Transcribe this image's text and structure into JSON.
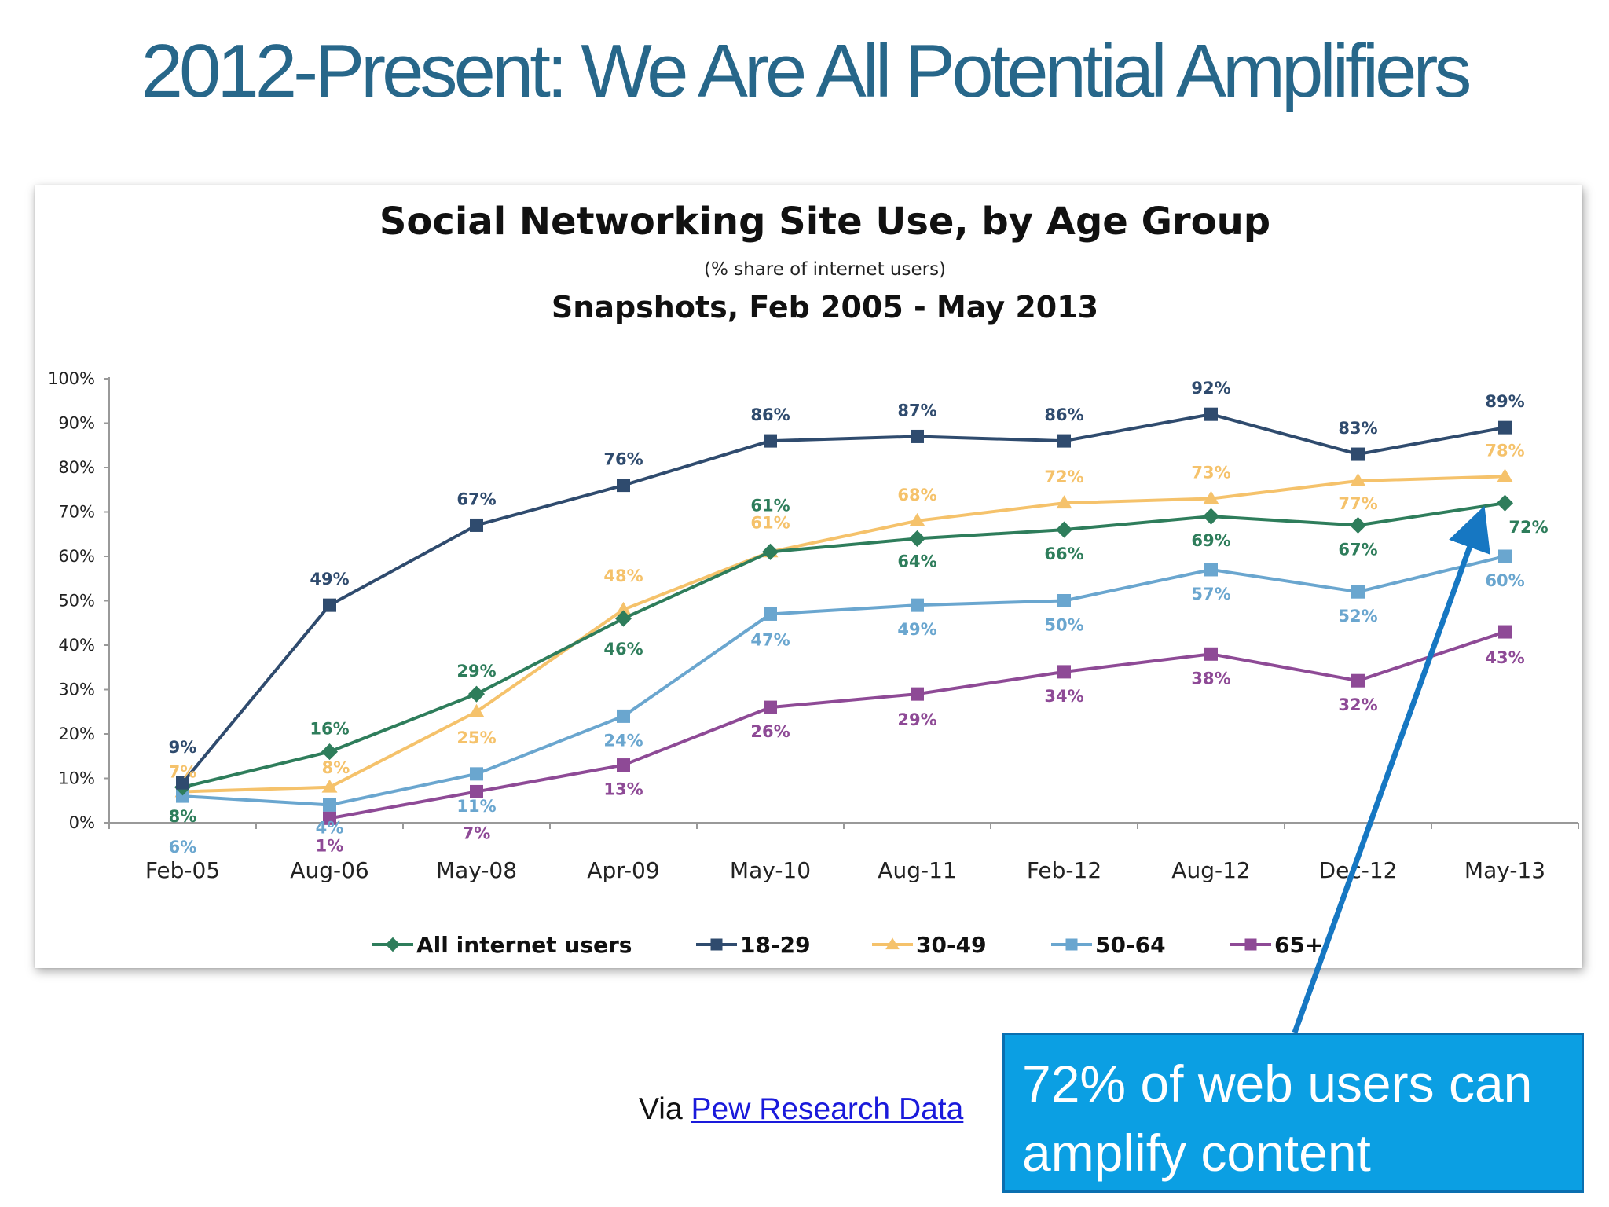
{
  "slide": {
    "title": "2012-Present: We Are All Potential Amplifiers",
    "source_prefix": "Via ",
    "source_link": "Pew Research Data",
    "callout": "72% of web users can amplify content",
    "colors": {
      "title": "#27678a",
      "callout_bg": "#0b9fe3",
      "arrow": "#1677c2"
    }
  },
  "chart_data": {
    "type": "line",
    "title": "Social Networking Site Use, by Age Group",
    "subtitle": "(% share of internet users)",
    "subtitle2": "Snapshots, Feb 2005 - May 2013",
    "categories": [
      "Feb-05",
      "Aug-06",
      "May-08",
      "Apr-09",
      "May-10",
      "Aug-11",
      "Feb-12",
      "Aug-12",
      "Dec-12",
      "May-13"
    ],
    "y_ticks": [
      "0%",
      "10%",
      "20%",
      "30%",
      "40%",
      "50%",
      "60%",
      "70%",
      "80%",
      "90%",
      "100%"
    ],
    "ylim": [
      0,
      100
    ],
    "legend_position": "bottom",
    "series": [
      {
        "name": "All internet users",
        "color": "#2e7d5b",
        "marker": "diamond",
        "values": [
          8,
          16,
          29,
          46,
          61,
          64,
          66,
          69,
          67,
          72
        ],
        "labels": [
          "8%",
          "16%",
          "29%",
          "46%",
          "61%",
          "64%",
          "66%",
          "69%",
          "67%",
          "72%"
        ]
      },
      {
        "name": "18-29",
        "color": "#2f4b6e",
        "marker": "square",
        "values": [
          9,
          49,
          67,
          76,
          86,
          87,
          86,
          92,
          83,
          89
        ],
        "labels": [
          "9%",
          "49%",
          "67%",
          "76%",
          "86%",
          "87%",
          "86%",
          "92%",
          "83%",
          "89%"
        ]
      },
      {
        "name": "30-49",
        "color": "#f5c26b",
        "marker": "triangle",
        "values": [
          7,
          8,
          25,
          48,
          61,
          68,
          72,
          73,
          77,
          78
        ],
        "labels": [
          "7%",
          "8%",
          "25%",
          "48%",
          "61%",
          "68%",
          "72%",
          "73%",
          "77%",
          "78%"
        ]
      },
      {
        "name": "50-64",
        "color": "#6aa6cf",
        "marker": "square",
        "values": [
          6,
          4,
          11,
          24,
          47,
          49,
          50,
          57,
          52,
          60
        ],
        "labels": [
          "6%",
          "4%",
          "11%",
          "24%",
          "47%",
          "49%",
          "50%",
          "57%",
          "52%",
          "60%"
        ]
      },
      {
        "name": "65+",
        "color": "#8e4a96",
        "marker": "square",
        "values": [
          null,
          1,
          7,
          13,
          26,
          29,
          34,
          38,
          32,
          43
        ],
        "labels": [
          null,
          "1%",
          "7%",
          "13%",
          "26%",
          "29%",
          "34%",
          "38%",
          "32%",
          "43%"
        ]
      }
    ]
  }
}
